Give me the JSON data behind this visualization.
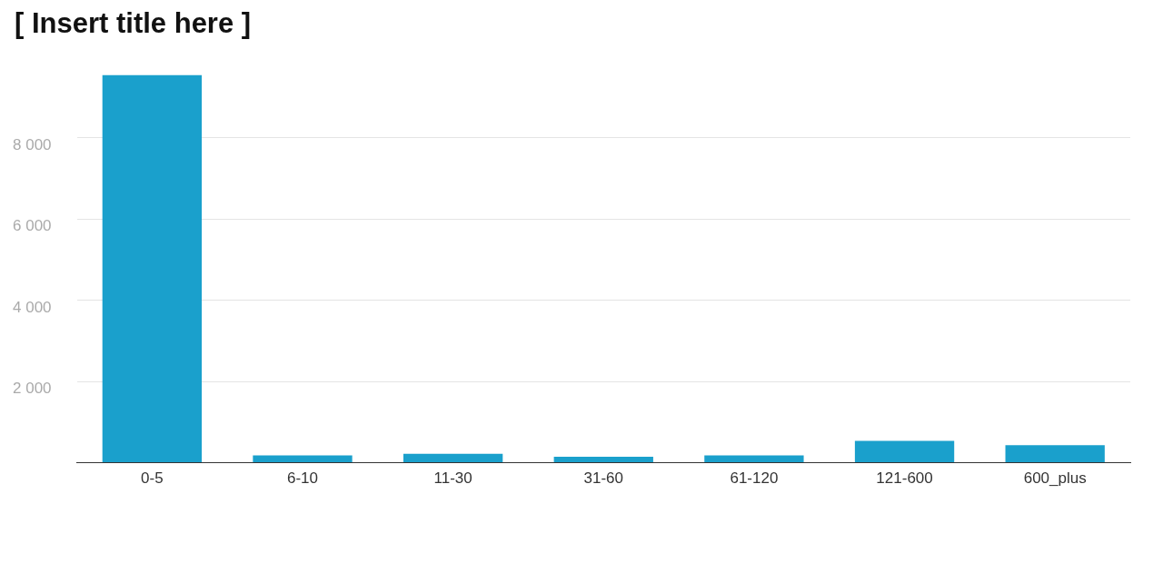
{
  "chart_data": {
    "type": "bar",
    "title": "[ Insert title here ]",
    "categories": [
      "0-5",
      "6-10",
      "11-30",
      "31-60",
      "61-120",
      "121-600",
      "600_plus"
    ],
    "values": [
      9540,
      180,
      220,
      150,
      180,
      540,
      430
    ],
    "color": "#1aa0cc",
    "ylim": [
      0,
      9600
    ],
    "yticks": [
      {
        "value": 0,
        "label": null
      },
      {
        "value": 2000,
        "label": "2 000"
      },
      {
        "value": 4000,
        "label": "4 000"
      },
      {
        "value": 6000,
        "label": "6 000"
      },
      {
        "value": 8000,
        "label": "8 000"
      }
    ],
    "grid": "y",
    "legend": false
  }
}
